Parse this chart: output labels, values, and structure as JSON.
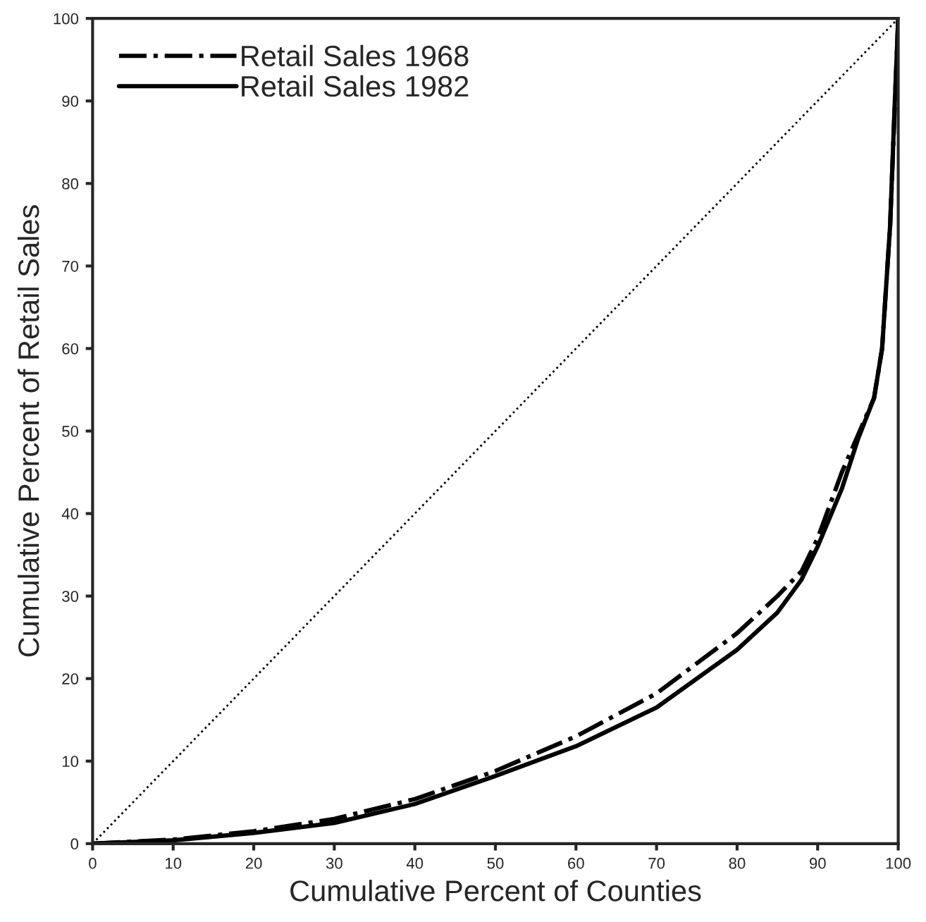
{
  "chart_data": {
    "type": "line",
    "xlabel": "Cumulative Percent of Counties",
    "ylabel": "Cumulative Percent of Retail Sales",
    "xlim": [
      0,
      100
    ],
    "ylim": [
      0,
      100
    ],
    "xticks": [
      0,
      10,
      20,
      30,
      40,
      50,
      60,
      70,
      80,
      90,
      100
    ],
    "yticks": [
      0,
      10,
      20,
      30,
      40,
      50,
      60,
      70,
      80,
      90,
      100
    ],
    "grid": false,
    "legend": "top left",
    "marker": "none",
    "series": [
      {
        "name": "Retail Sales 1968",
        "color": "#000000",
        "line_style": "dashdot",
        "x": [
          0,
          10,
          20,
          30,
          40,
          50,
          60,
          70,
          80,
          85,
          88,
          90,
          93,
          95,
          97,
          98,
          99,
          100
        ],
        "values": [
          0,
          0.5,
          1.5,
          3,
          5.4,
          8.8,
          13,
          18.2,
          25.5,
          30,
          33,
          37,
          45,
          49.5,
          54,
          60,
          75,
          100
        ]
      },
      {
        "name": "Retail Sales 1982",
        "color": "#000000",
        "line_style": "solid",
        "x": [
          0,
          10,
          20,
          30,
          40,
          50,
          60,
          70,
          80,
          85,
          88,
          90,
          93,
          95,
          97,
          98,
          99,
          99.5,
          100
        ],
        "values": [
          0,
          0.4,
          1.3,
          2.5,
          4.8,
          8.2,
          11.8,
          16.5,
          23.5,
          28,
          32,
          36,
          43,
          49,
          54,
          60,
          75,
          88,
          100
        ]
      },
      {
        "color": "#000000",
        "line_style": "dotted",
        "x": [
          0,
          100
        ],
        "values": [
          0,
          100
        ]
      }
    ]
  }
}
